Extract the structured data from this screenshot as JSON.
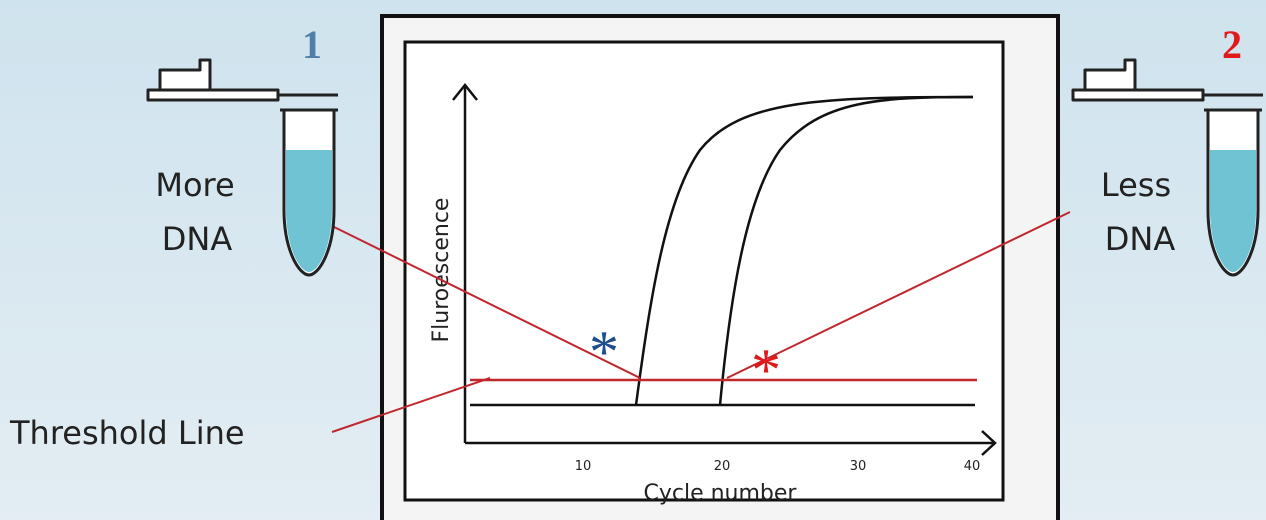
{
  "sample_1": {
    "number": "1",
    "label_lines": [
      "More",
      "DNA"
    ]
  },
  "sample_2": {
    "number": "2",
    "label_lines": [
      "Less",
      "DNA"
    ]
  },
  "plot": {
    "y_axis_label": "Fluroescence",
    "x_axis_label": "Cycle number",
    "x_ticks": [
      "10",
      "20",
      "30",
      "40"
    ],
    "markers": [
      "*",
      "*"
    ]
  },
  "threshold_label": "Threshold Line"
}
